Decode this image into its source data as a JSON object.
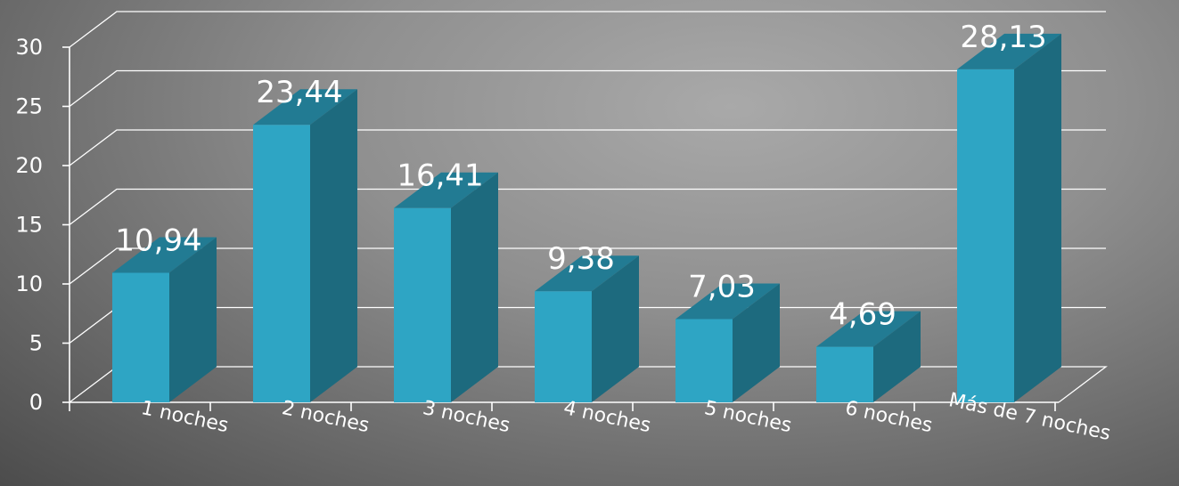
{
  "chart_data": {
    "type": "bar",
    "categories": [
      "1 noches",
      "2 noches",
      "3 noches",
      "4 noches",
      "5 noches",
      "6 noches",
      "Más de 7 noches"
    ],
    "values": [
      10.94,
      23.44,
      16.41,
      9.38,
      7.03,
      4.69,
      28.13
    ],
    "data_labels": [
      "10,94",
      "23,44",
      "16,41",
      "9,38",
      "7,03",
      "4,69",
      "28,13"
    ],
    "y_ticks": [
      "0",
      "5",
      "10",
      "15",
      "20",
      "25",
      "30"
    ],
    "ylim": [
      0,
      30
    ],
    "grid": true,
    "style": "3d-column",
    "colors": {
      "front": "#2ea5c4",
      "side": "#1d6a7e",
      "top": "#227b93"
    }
  }
}
